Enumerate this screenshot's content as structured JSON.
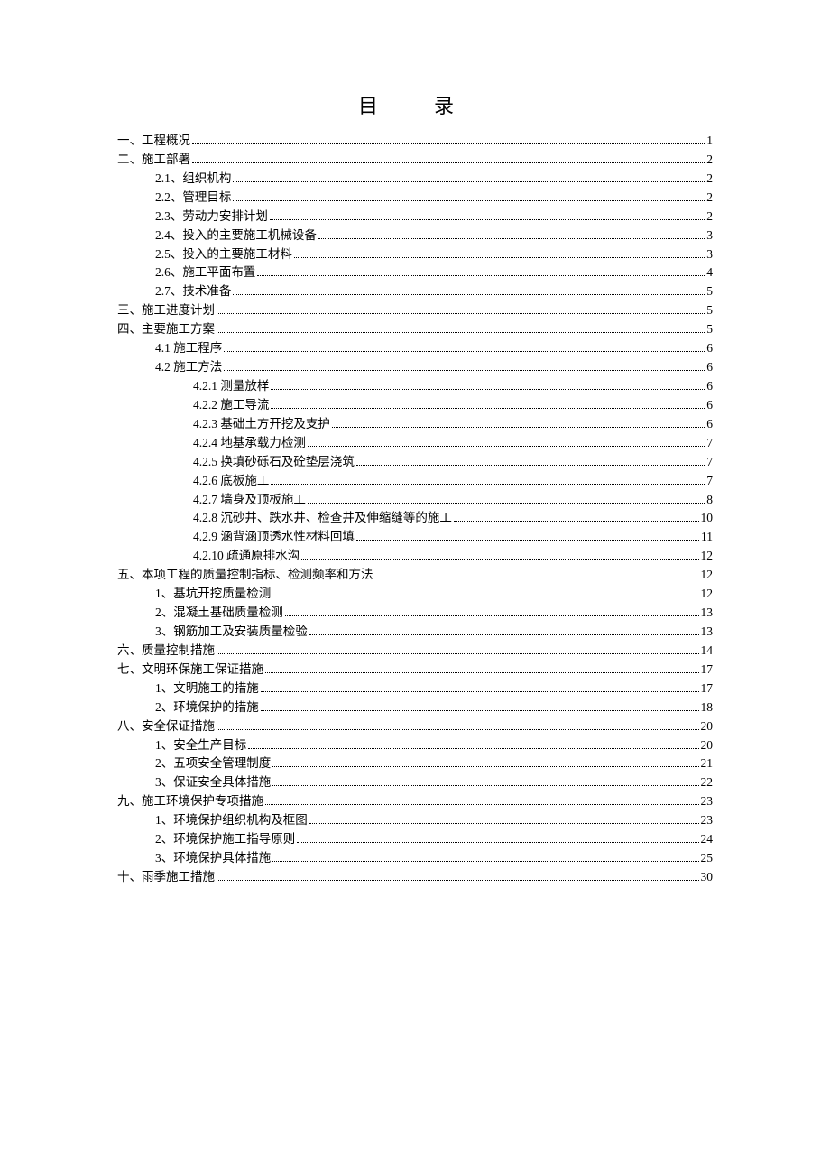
{
  "title": "目　录",
  "entries": [
    {
      "level": 0,
      "label": "一、工程概况",
      "page": "1"
    },
    {
      "level": 0,
      "label": "二、施工部署",
      "page": "2"
    },
    {
      "level": 1,
      "label": "2.1、组织机构",
      "page": "2"
    },
    {
      "level": 1,
      "label": "2.2、管理目标",
      "page": "2"
    },
    {
      "level": 1,
      "label": "2.3、劳动力安排计划",
      "page": "2"
    },
    {
      "level": 1,
      "label": "2.4、投入的主要施工机械设备",
      "page": "3"
    },
    {
      "level": 1,
      "label": "2.5、投入的主要施工材料",
      "page": "3"
    },
    {
      "level": 1,
      "label": "2.6、施工平面布置",
      "page": "4"
    },
    {
      "level": 1,
      "label": "2.7、技术准备",
      "page": "5"
    },
    {
      "level": 0,
      "label": "三、施工进度计划",
      "page": "5"
    },
    {
      "level": 0,
      "label": "四、主要施工方案",
      "page": "5"
    },
    {
      "level": 1,
      "label": "4.1 施工程序",
      "page": "6"
    },
    {
      "level": 1,
      "label": "4.2 施工方法",
      "page": "6"
    },
    {
      "level": 2,
      "label": "4.2.1 测量放样",
      "page": "6"
    },
    {
      "level": 2,
      "label": "4.2.2 施工导流",
      "page": "6"
    },
    {
      "level": 2,
      "label": "4.2.3 基础土方开挖及支护",
      "page": "6"
    },
    {
      "level": 2,
      "label": "4.2.4 地基承载力检测",
      "page": "7"
    },
    {
      "level": 2,
      "label": "4.2.5 换填砂砾石及砼垫层浇筑",
      "page": "7"
    },
    {
      "level": 2,
      "label": "4.2.6 底板施工",
      "page": "7"
    },
    {
      "level": 2,
      "label": "4.2.7 墙身及顶板施工",
      "page": "8"
    },
    {
      "level": 2,
      "label": "4.2.8 沉砂井、跌水井、检查井及伸缩缝等的施工",
      "page": "10"
    },
    {
      "level": 2,
      "label": "4.2.9 涵背涵顶透水性材料回填",
      "page": "11"
    },
    {
      "level": 2,
      "label": "4.2.10 疏通原排水沟",
      "page": "12"
    },
    {
      "level": 0,
      "label": "五、本项工程的质量控制指标、检测频率和方法",
      "page": "12"
    },
    {
      "level": 1,
      "label": "1、基坑开挖质量检测",
      "page": "12"
    },
    {
      "level": 1,
      "label": "2、混凝土基础质量检测",
      "page": "13"
    },
    {
      "level": 1,
      "label": "3、钢筋加工及安装质量检验",
      "page": "13"
    },
    {
      "level": 0,
      "label": "六、质量控制措施",
      "page": "14"
    },
    {
      "level": 0,
      "label": "七、文明环保施工保证措施",
      "page": "17"
    },
    {
      "level": 1,
      "label": "1、文明施工的措施",
      "page": "17"
    },
    {
      "level": 1,
      "label": "2、环境保护的措施",
      "page": "18"
    },
    {
      "level": 0,
      "label": "八、安全保证措施",
      "page": "20"
    },
    {
      "level": 1,
      "label": "1、安全生产目标",
      "page": "20"
    },
    {
      "level": 1,
      "label": "2、五项安全管理制度",
      "page": "21"
    },
    {
      "level": 1,
      "label": "3、保证安全具体措施",
      "page": "22"
    },
    {
      "level": 0,
      "label": "九、施工环境保护专项措施",
      "page": "23"
    },
    {
      "level": 1,
      "label": "1、环境保护组织机构及框图",
      "page": "23"
    },
    {
      "level": 1,
      "label": "2、环境保护施工指导原则",
      "page": "24"
    },
    {
      "level": 1,
      "label": "3、环境保护具体措施",
      "page": "25"
    },
    {
      "level": 0,
      "label": "十、雨季施工措施",
      "page": "30"
    }
  ]
}
